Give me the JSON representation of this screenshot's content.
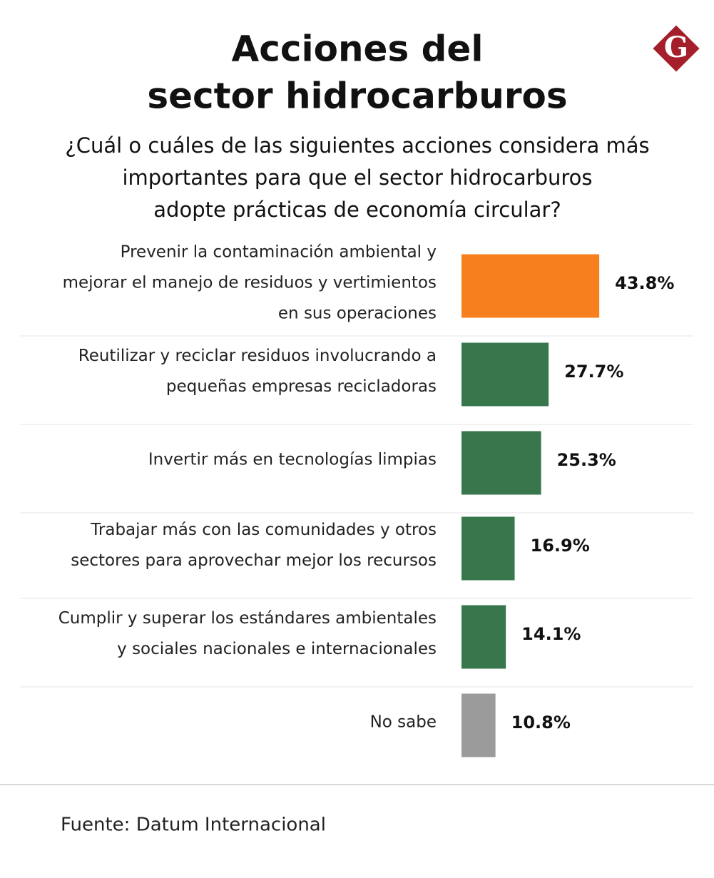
{
  "logo": "G",
  "chart_data": {
    "type": "bar",
    "orientation": "horizontal",
    "title": [
      "Acciones del",
      "sector hidrocarburos"
    ],
    "subtitle": [
      "¿Cuál o cuáles de las siguientes acciones considera más",
      "importantes para que el sector hidrocarburos",
      "adopte prácticas de economía circular?"
    ],
    "categories": [
      [
        "Prevenir la contaminación ambiental y",
        "mejorar el manejo de residuos y vertimientos",
        "en sus operaciones"
      ],
      [
        "Reutilizar y reciclar residuos involucrando a",
        "pequeñas empresas recicladoras"
      ],
      [
        "Invertir más en tecnologías limpias"
      ],
      [
        "Trabajar más con las comunidades y otros",
        "sectores para aprovechar mejor los recursos"
      ],
      [
        "Cumplir y superar los estándares ambientales",
        "y sociales nacionales e internacionales"
      ],
      [
        "No sabe"
      ]
    ],
    "values": [
      43.8,
      27.7,
      25.3,
      16.9,
      14.1,
      10.8
    ],
    "value_labels": [
      "43.8%",
      "27.7%",
      "25.3%",
      "16.9%",
      "14.1%",
      "10.8%"
    ],
    "colors": [
      "#f7801e",
      "#38764c",
      "#38764c",
      "#38764c",
      "#38764c",
      "#9b9b9b"
    ],
    "source": "Fuente:  Datum Internacional"
  }
}
